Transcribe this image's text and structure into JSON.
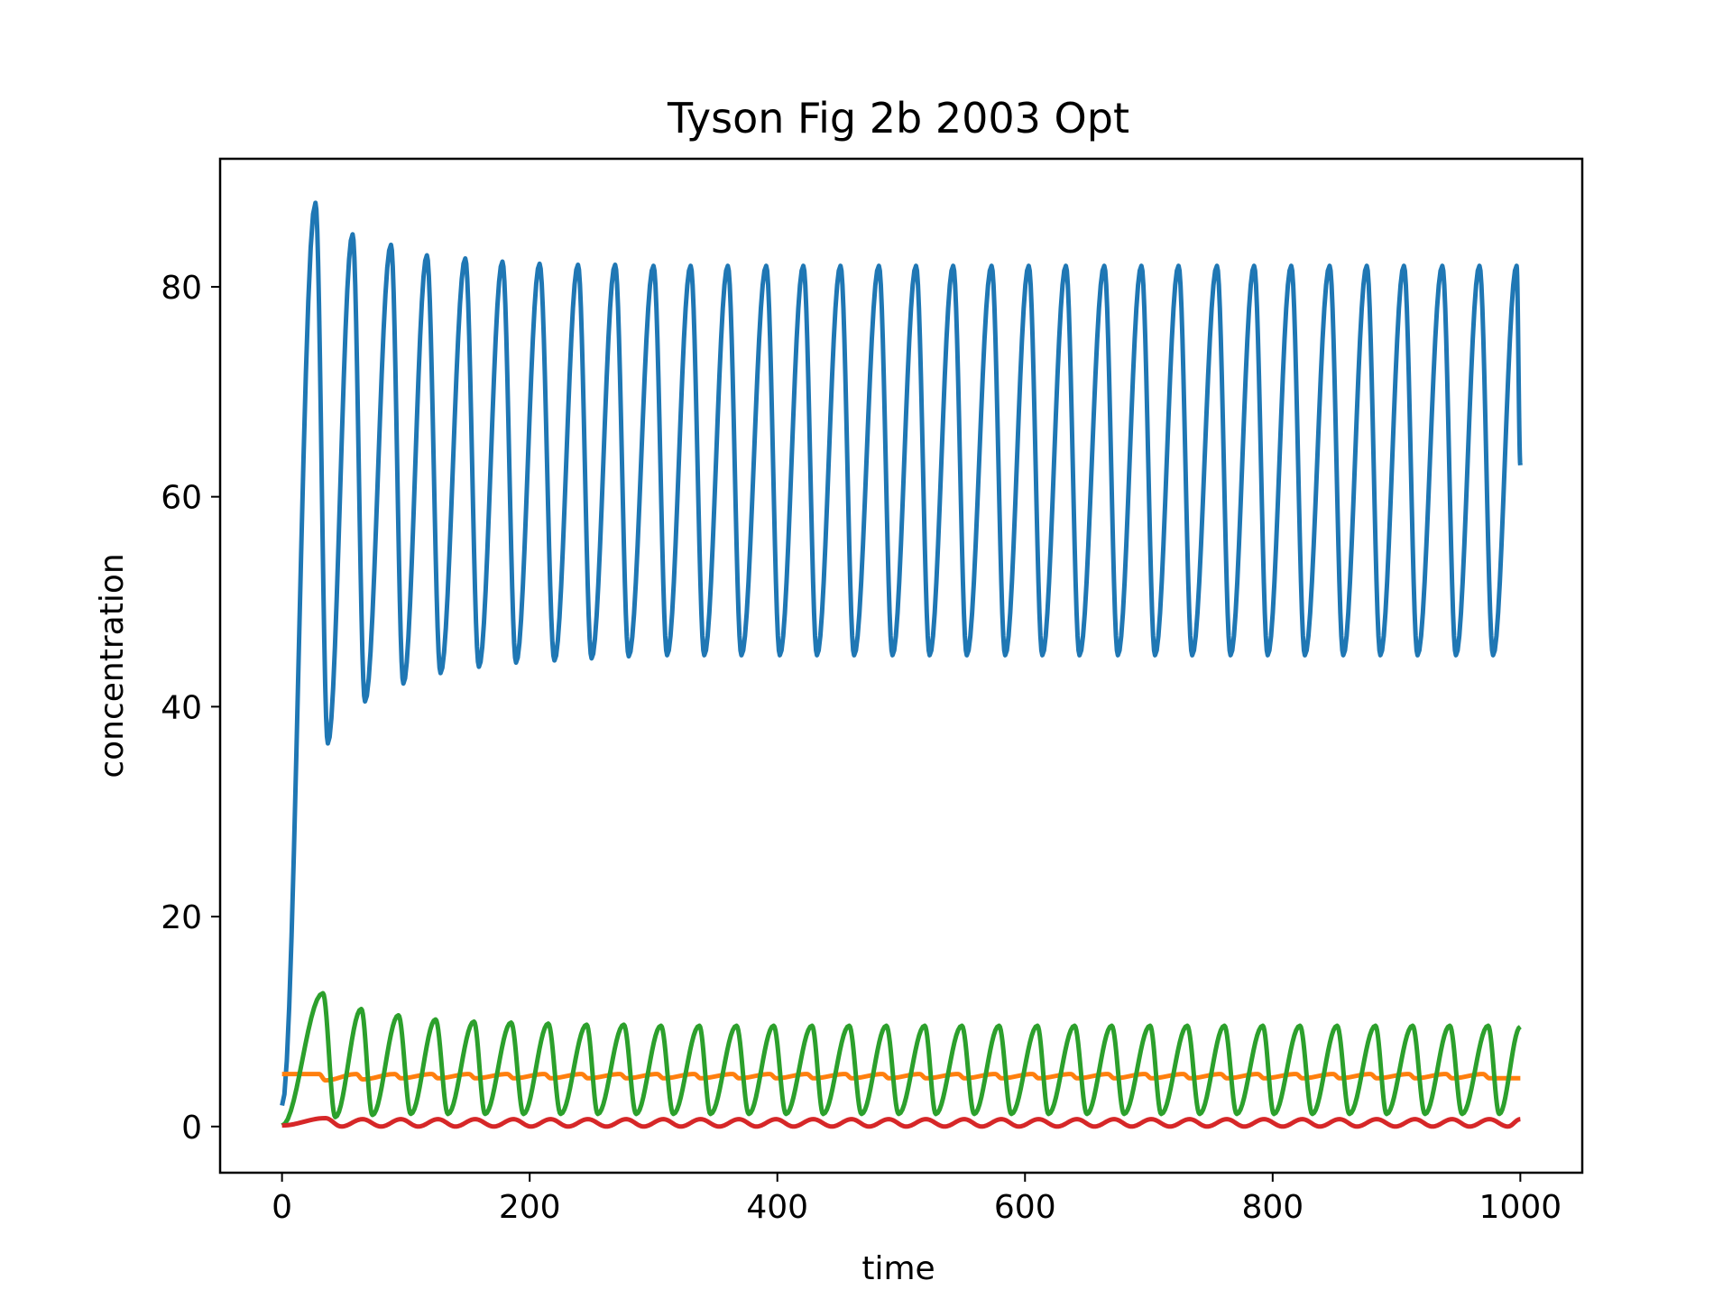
{
  "chart_data": {
    "type": "line",
    "title": "Tyson Fig 2b 2003 Opt",
    "xlabel": "time",
    "ylabel": "concentration",
    "xlim": [
      -50,
      1050
    ],
    "ylim": [
      -4.4,
      92.2
    ],
    "xticks": [
      0,
      200,
      400,
      600,
      800,
      1000
    ],
    "yticks": [
      0,
      20,
      40,
      60,
      80
    ],
    "grid": false,
    "legend": "none",
    "series": [
      {
        "color": "#1f77b4",
        "start": 2,
        "end": 63,
        "peaks": [
          [
            27,
            88
          ],
          [
            57,
            85
          ],
          [
            88,
            84
          ],
          [
            117,
            83
          ],
          [
            148,
            82.7
          ],
          [
            178,
            82.4
          ],
          [
            208,
            82.2
          ],
          [
            239,
            82.1
          ],
          [
            269,
            82.1
          ],
          [
            300,
            82
          ],
          [
            330,
            82
          ],
          [
            360,
            82
          ],
          [
            391,
            82
          ],
          [
            421,
            82
          ],
          [
            451,
            82
          ],
          [
            482,
            82
          ],
          [
            512,
            82
          ],
          [
            542,
            82
          ],
          [
            573,
            82
          ],
          [
            603,
            82
          ],
          [
            633,
            82
          ],
          [
            664,
            82
          ],
          [
            694,
            82
          ],
          [
            724,
            82
          ],
          [
            755,
            82
          ],
          [
            785,
            82
          ],
          [
            815,
            82
          ],
          [
            846,
            82
          ],
          [
            876,
            82
          ],
          [
            906,
            82
          ],
          [
            937,
            82
          ],
          [
            967,
            82
          ],
          [
            997,
            82
          ]
        ],
        "troughs": [
          [
            37,
            36.5
          ],
          [
            67,
            40.5
          ],
          [
            98,
            42.2
          ],
          [
            128,
            43.2
          ],
          [
            159,
            43.8
          ],
          [
            189,
            44.2
          ],
          [
            220,
            44.4
          ],
          [
            250,
            44.6
          ],
          [
            280,
            44.8
          ],
          [
            311,
            44.9
          ],
          [
            341,
            44.9
          ],
          [
            371,
            44.9
          ],
          [
            402,
            44.9
          ],
          [
            432,
            44.9
          ],
          [
            462,
            44.9
          ],
          [
            493,
            44.9
          ],
          [
            523,
            44.9
          ],
          [
            553,
            44.9
          ],
          [
            584,
            44.9
          ],
          [
            614,
            44.9
          ],
          [
            644,
            44.9
          ],
          [
            675,
            44.9
          ],
          [
            705,
            44.9
          ],
          [
            735,
            44.9
          ],
          [
            766,
            44.9
          ],
          [
            796,
            44.9
          ],
          [
            826,
            44.9
          ],
          [
            857,
            44.9
          ],
          [
            887,
            44.9
          ],
          [
            917,
            44.9
          ],
          [
            948,
            44.9
          ],
          [
            978,
            44.9
          ]
        ]
      },
      {
        "color": "#ff7f0e",
        "start": 5,
        "end": 4.6,
        "peaks": [
          [
            30,
            5.0
          ],
          [
            60,
            5.0
          ],
          [
            91,
            5.0
          ],
          [
            121,
            5.0
          ],
          [
            151,
            5.0
          ],
          [
            182,
            5.0
          ],
          [
            212,
            5.0
          ],
          [
            242,
            5.0
          ],
          [
            273,
            5.0
          ],
          [
            303,
            5.0
          ],
          [
            333,
            5.0
          ],
          [
            364,
            5.0
          ],
          [
            394,
            5.0
          ],
          [
            424,
            5.0
          ],
          [
            455,
            5.0
          ],
          [
            485,
            5.0
          ],
          [
            515,
            5.0
          ],
          [
            546,
            5.0
          ],
          [
            576,
            5.0
          ],
          [
            606,
            5.0
          ],
          [
            637,
            5.0
          ],
          [
            667,
            5.0
          ],
          [
            697,
            5.0
          ],
          [
            728,
            5.0
          ],
          [
            758,
            5.0
          ],
          [
            788,
            5.0
          ],
          [
            819,
            5.0
          ],
          [
            849,
            5.0
          ],
          [
            879,
            5.0
          ],
          [
            910,
            5.0
          ],
          [
            940,
            5.0
          ],
          [
            970,
            5.0
          ]
        ],
        "troughs": [
          [
            35,
            4.4
          ],
          [
            65,
            4.5
          ],
          [
            96,
            4.6
          ],
          [
            126,
            4.6
          ],
          [
            156,
            4.6
          ],
          [
            187,
            4.6
          ],
          [
            217,
            4.6
          ],
          [
            247,
            4.6
          ],
          [
            278,
            4.6
          ],
          [
            308,
            4.6
          ],
          [
            338,
            4.6
          ],
          [
            369,
            4.6
          ],
          [
            399,
            4.6
          ],
          [
            429,
            4.6
          ],
          [
            460,
            4.6
          ],
          [
            490,
            4.6
          ],
          [
            520,
            4.6
          ],
          [
            551,
            4.6
          ],
          [
            581,
            4.6
          ],
          [
            611,
            4.6
          ],
          [
            642,
            4.6
          ],
          [
            672,
            4.6
          ],
          [
            702,
            4.6
          ],
          [
            733,
            4.6
          ],
          [
            763,
            4.6
          ],
          [
            793,
            4.6
          ],
          [
            824,
            4.6
          ],
          [
            854,
            4.6
          ],
          [
            884,
            4.6
          ],
          [
            915,
            4.6
          ],
          [
            945,
            4.6
          ],
          [
            975,
            4.6
          ]
        ]
      },
      {
        "color": "#2ca02c",
        "start": 0.1,
        "end": 9.5,
        "peaks": [
          [
            33,
            12.7
          ],
          [
            64,
            11.2
          ],
          [
            94,
            10.6
          ],
          [
            124,
            10.2
          ],
          [
            155,
            10.0
          ],
          [
            185,
            9.9
          ],
          [
            215,
            9.8
          ],
          [
            246,
            9.7
          ],
          [
            276,
            9.7
          ],
          [
            306,
            9.6
          ],
          [
            337,
            9.6
          ],
          [
            367,
            9.6
          ],
          [
            397,
            9.6
          ],
          [
            428,
            9.6
          ],
          [
            458,
            9.6
          ],
          [
            488,
            9.6
          ],
          [
            519,
            9.6
          ],
          [
            549,
            9.6
          ],
          [
            579,
            9.6
          ],
          [
            610,
            9.6
          ],
          [
            640,
            9.6
          ],
          [
            670,
            9.6
          ],
          [
            701,
            9.6
          ],
          [
            731,
            9.6
          ],
          [
            761,
            9.6
          ],
          [
            792,
            9.6
          ],
          [
            822,
            9.6
          ],
          [
            852,
            9.6
          ],
          [
            883,
            9.6
          ],
          [
            913,
            9.6
          ],
          [
            943,
            9.6
          ],
          [
            974,
            9.6
          ]
        ],
        "troughs": [
          [
            43,
            0.9
          ],
          [
            73,
            1.1
          ],
          [
            104,
            1.2
          ],
          [
            134,
            1.2
          ],
          [
            164,
            1.2
          ],
          [
            195,
            1.2
          ],
          [
            225,
            1.2
          ],
          [
            255,
            1.2
          ],
          [
            286,
            1.2
          ],
          [
            316,
            1.2
          ],
          [
            346,
            1.2
          ],
          [
            377,
            1.2
          ],
          [
            407,
            1.2
          ],
          [
            437,
            1.2
          ],
          [
            468,
            1.2
          ],
          [
            498,
            1.2
          ],
          [
            528,
            1.2
          ],
          [
            559,
            1.2
          ],
          [
            589,
            1.2
          ],
          [
            619,
            1.2
          ],
          [
            650,
            1.2
          ],
          [
            680,
            1.2
          ],
          [
            710,
            1.2
          ],
          [
            741,
            1.2
          ],
          [
            771,
            1.2
          ],
          [
            801,
            1.2
          ],
          [
            832,
            1.2
          ],
          [
            862,
            1.2
          ],
          [
            892,
            1.2
          ],
          [
            923,
            1.2
          ],
          [
            953,
            1.2
          ],
          [
            983,
            1.2
          ]
        ]
      },
      {
        "color": "#d62728",
        "start": 0.1,
        "end": 0.7,
        "peaks": [
          [
            35,
            0.8
          ],
          [
            65,
            0.7
          ],
          [
            96,
            0.7
          ],
          [
            126,
            0.7
          ],
          [
            156,
            0.7
          ],
          [
            187,
            0.7
          ],
          [
            217,
            0.7
          ],
          [
            247,
            0.7
          ],
          [
            278,
            0.7
          ],
          [
            308,
            0.7
          ],
          [
            338,
            0.7
          ],
          [
            369,
            0.7
          ],
          [
            399,
            0.7
          ],
          [
            429,
            0.7
          ],
          [
            460,
            0.7
          ],
          [
            490,
            0.7
          ],
          [
            520,
            0.7
          ],
          [
            551,
            0.7
          ],
          [
            581,
            0.7
          ],
          [
            611,
            0.7
          ],
          [
            642,
            0.7
          ],
          [
            672,
            0.7
          ],
          [
            702,
            0.7
          ],
          [
            733,
            0.7
          ],
          [
            763,
            0.7
          ],
          [
            793,
            0.7
          ],
          [
            824,
            0.7
          ],
          [
            854,
            0.7
          ],
          [
            884,
            0.7
          ],
          [
            915,
            0.7
          ],
          [
            945,
            0.7
          ],
          [
            975,
            0.7
          ]
        ],
        "troughs": [
          [
            48,
            0.0
          ],
          [
            80,
            0.0
          ],
          [
            110,
            0.0
          ],
          [
            140,
            0.0
          ],
          [
            171,
            0.0
          ],
          [
            201,
            0.0
          ],
          [
            231,
            0.0
          ],
          [
            262,
            0.0
          ],
          [
            292,
            0.0
          ],
          [
            322,
            0.0
          ],
          [
            353,
            0.0
          ],
          [
            383,
            0.0
          ],
          [
            413,
            0.0
          ],
          [
            444,
            0.0
          ],
          [
            474,
            0.0
          ],
          [
            504,
            0.0
          ],
          [
            535,
            0.0
          ],
          [
            565,
            0.0
          ],
          [
            595,
            0.0
          ],
          [
            626,
            0.0
          ],
          [
            656,
            0.0
          ],
          [
            686,
            0.0
          ],
          [
            717,
            0.0
          ],
          [
            747,
            0.0
          ],
          [
            777,
            0.0
          ],
          [
            808,
            0.0
          ],
          [
            838,
            0.0
          ],
          [
            868,
            0.0
          ],
          [
            899,
            0.0
          ],
          [
            929,
            0.0
          ],
          [
            959,
            0.0
          ],
          [
            990,
            0.0
          ]
        ]
      }
    ]
  }
}
